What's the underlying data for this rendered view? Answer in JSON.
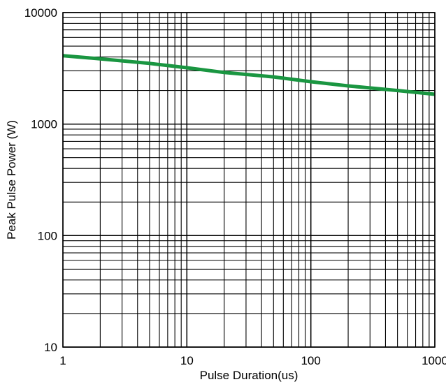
{
  "chart_data": {
    "type": "line",
    "title": "",
    "xlabel": "Pulse Duration(us)",
    "ylabel": "Peak Pulse Power (W)",
    "xscale": "log",
    "yscale": "log",
    "xlim": [
      1,
      1000
    ],
    "ylim": [
      10,
      10000
    ],
    "x_ticks": [
      1,
      10,
      100,
      1000
    ],
    "x_tick_labels": [
      "1",
      "10",
      "100",
      "1000"
    ],
    "y_ticks": [
      10,
      100,
      1000,
      10000
    ],
    "y_tick_labels": [
      "10",
      "100",
      "1000",
      "10000"
    ],
    "grid": true,
    "legend": "none",
    "series": [
      {
        "color": "#1a9641",
        "x": [
          1,
          2,
          5,
          10,
          20,
          50,
          100,
          200,
          500,
          1000
        ],
        "y": [
          4100,
          3850,
          3500,
          3200,
          2900,
          2650,
          2400,
          2200,
          2000,
          1850
        ]
      }
    ]
  }
}
